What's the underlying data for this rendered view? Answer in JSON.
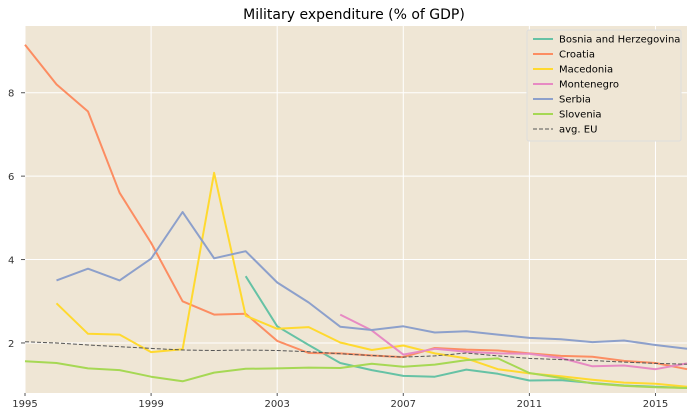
{
  "chart_data": {
    "type": "line",
    "title": "Military expenditure (% of GDP)",
    "xlabel": "",
    "ylabel": "",
    "xlim": [
      1995,
      2016
    ],
    "ylim": [
      0.8,
      9.6
    ],
    "x_ticks": [
      1995,
      1999,
      2003,
      2007,
      2011,
      2015
    ],
    "y_ticks": [
      2,
      4,
      6,
      8
    ],
    "grid": true,
    "legend_position": "top-right",
    "background": "#efe6d5",
    "series": [
      {
        "name": "Bosnia and Herzegovina",
        "color": "#66c2a5",
        "dashed": false,
        "x": [
          2002,
          2003,
          2004,
          2005,
          2006,
          2007,
          2008,
          2009,
          2010,
          2011,
          2012,
          2013,
          2014,
          2015,
          2016
        ],
        "y": [
          3.6,
          2.4,
          1.95,
          1.52,
          1.35,
          1.21,
          1.19,
          1.36,
          1.26,
          1.1,
          1.11,
          1.04,
          0.98,
          0.95,
          0.92
        ]
      },
      {
        "name": "Croatia",
        "color": "#fc8d62",
        "dashed": false,
        "x": [
          1995,
          1996,
          1997,
          1998,
          1999,
          2000,
          2001,
          2002,
          2003,
          2004,
          2005,
          2006,
          2007,
          2008,
          2009,
          2010,
          2011,
          2012,
          2013,
          2014,
          2015,
          2016
        ],
        "y": [
          9.15,
          8.2,
          7.55,
          5.6,
          4.4,
          3.0,
          2.68,
          2.7,
          2.05,
          1.76,
          1.75,
          1.7,
          1.66,
          1.88,
          1.84,
          1.82,
          1.75,
          1.69,
          1.67,
          1.57,
          1.52,
          1.37
        ]
      },
      {
        "name": "Macedonia",
        "color": "#ffd92f",
        "dashed": false,
        "x": [
          1996,
          1997,
          1998,
          1999,
          2000,
          2001,
          2002,
          2003,
          2004,
          2005,
          2006,
          2007,
          2008,
          2009,
          2010,
          2011,
          2012,
          2013,
          2014,
          2015,
          2016
        ],
        "y": [
          2.95,
          2.22,
          2.2,
          1.78,
          1.85,
          6.08,
          2.65,
          2.34,
          2.38,
          2.01,
          1.83,
          1.94,
          1.75,
          1.63,
          1.37,
          1.27,
          1.2,
          1.12,
          1.05,
          1.02,
          0.95
        ]
      },
      {
        "name": "Montenegro",
        "color": "#e78ac3",
        "dashed": false,
        "x": [
          2005,
          2006,
          2007,
          2008,
          2009,
          2010,
          2011,
          2012,
          2013,
          2014,
          2015,
          2016
        ],
        "y": [
          2.68,
          2.3,
          1.72,
          1.86,
          1.79,
          1.75,
          1.74,
          1.64,
          1.44,
          1.46,
          1.37,
          1.51
        ]
      },
      {
        "name": "Serbia",
        "color": "#8da0cb",
        "dashed": false,
        "x": [
          1996,
          1997,
          1998,
          1999,
          2000,
          2001,
          2002,
          2003,
          2004,
          2005,
          2006,
          2007,
          2008,
          2009,
          2010,
          2011,
          2012,
          2013,
          2014,
          2015,
          2016
        ],
        "y": [
          3.5,
          3.78,
          3.5,
          4.02,
          5.14,
          4.03,
          4.2,
          3.45,
          2.97,
          2.39,
          2.31,
          2.4,
          2.25,
          2.28,
          2.2,
          2.12,
          2.09,
          2.02,
          2.06,
          1.95,
          1.86
        ]
      },
      {
        "name": "Slovenia",
        "color": "#a6d854",
        "dashed": false,
        "x": [
          1995,
          1996,
          1997,
          1998,
          1999,
          2000,
          2001,
          2002,
          2003,
          2004,
          2005,
          2006,
          2007,
          2008,
          2009,
          2010,
          2011,
          2012,
          2013,
          2014,
          2015,
          2016
        ],
        "y": [
          1.56,
          1.52,
          1.39,
          1.35,
          1.19,
          1.08,
          1.29,
          1.38,
          1.39,
          1.41,
          1.4,
          1.5,
          1.43,
          1.48,
          1.59,
          1.63,
          1.28,
          1.16,
          1.03,
          0.97,
          0.94,
          0.92
        ]
      },
      {
        "name": "avg. EU",
        "color": "#555555",
        "dashed": true,
        "x": [
          1995,
          1996,
          1997,
          1998,
          1999,
          2000,
          2001,
          2002,
          2003,
          2004,
          2005,
          2006,
          2007,
          2008,
          2009,
          2010,
          2011,
          2012,
          2013,
          2014,
          2015,
          2016
        ],
        "y": [
          2.03,
          2.0,
          1.95,
          1.91,
          1.87,
          1.83,
          1.82,
          1.83,
          1.82,
          1.79,
          1.74,
          1.7,
          1.66,
          1.69,
          1.76,
          1.69,
          1.63,
          1.6,
          1.58,
          1.54,
          1.51,
          1.49
        ]
      }
    ]
  }
}
